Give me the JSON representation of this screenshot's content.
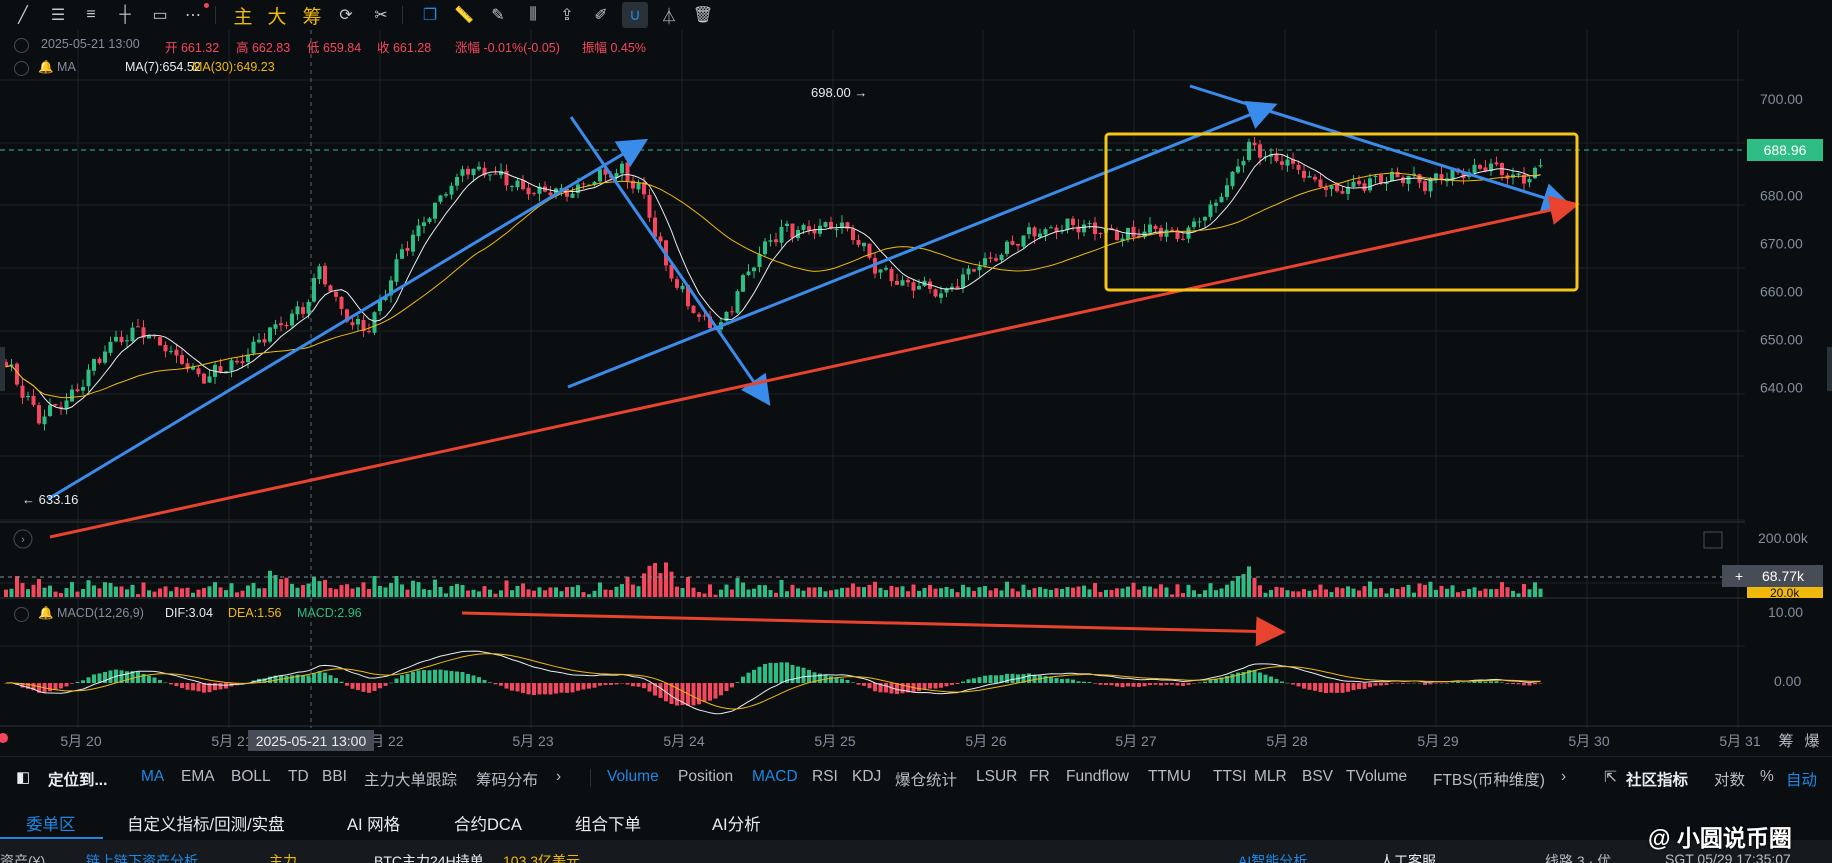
{
  "toolbar": {
    "icons": [
      "line-tool-icon",
      "parallel-lines-icon",
      "horizontal-lines-icon",
      "horizontal-ray-icon",
      "rectangle-icon",
      "more-tools-icon",
      "main-icon",
      "big-icon",
      "chips-icon",
      "sync-icon",
      "shapes-icon",
      "copy-icon",
      "ruler-icon",
      "brush-icon",
      "candles-icon",
      "upload-icon",
      "edit-icon",
      "magnet-icon",
      "filter-icon",
      "trash-icon"
    ],
    "main_label": "主",
    "big_label": "大",
    "chips_label": "筹"
  },
  "ohlc_bar": {
    "datetime": "2025-05-21 13:00",
    "open_label": "开",
    "open": "661.32",
    "high_label": "高",
    "high": "662.83",
    "low_label": "低",
    "low": "659.84",
    "close_label": "收",
    "close": "661.28",
    "change_label": "涨幅",
    "change": "-0.01%(-0.05)",
    "amplitude_label": "振幅",
    "amplitude": "0.45%"
  },
  "ma_legend": {
    "name": "MA",
    "ma7": "MA(7):654.52",
    "ma30": "MA(30):649.23"
  },
  "macd_legend": {
    "name": "MACD(12,26,9)",
    "dif": "DIF:3.04",
    "dea": "DEA:1.56",
    "macd": "MACD:2.96"
  },
  "markers": {
    "high": "698.00 →",
    "low": "← 633.16",
    "crosshair_time": "2025-05-21 13:00"
  },
  "price_tags": {
    "current": "688.96",
    "volume": "68.77k",
    "volume_low": "20.0k"
  },
  "colors": {
    "up": "#2ebd85",
    "down": "#f6465d",
    "ma7": "#eaecef",
    "ma30": "#f0b90b",
    "annot_blue": "#3b8beb",
    "annot_red": "#e8432e",
    "box": "#f5c518",
    "grid": "#1c2026",
    "axis_text": "#848e9c"
  },
  "chart_data": {
    "type": "candlestick",
    "ylim": [
      628,
      704
    ],
    "y_ticks": [
      640,
      650,
      660,
      670,
      680,
      690,
      700
    ],
    "y_tick_labels": [
      "640.00",
      "650.00",
      "660.00",
      "670.00",
      "680.00",
      "700.00"
    ],
    "x_tick_labels": [
      "5月 20",
      "5月 21",
      "5月 22",
      "5月 23",
      "5月 24",
      "5月 25",
      "5月 26",
      "5月 27",
      "5月 28",
      "5月 29",
      "5月 30",
      "5月 31"
    ],
    "close_anchors": [
      [
        0,
        645
      ],
      [
        6,
        633.5
      ],
      [
        12,
        638
      ],
      [
        18,
        648
      ],
      [
        24,
        652
      ],
      [
        30,
        647
      ],
      [
        36,
        642
      ],
      [
        42,
        645
      ],
      [
        48,
        652
      ],
      [
        54,
        656
      ],
      [
        57,
        665
      ],
      [
        60,
        658
      ],
      [
        63,
        653
      ],
      [
        66,
        652
      ],
      [
        72,
        668
      ],
      [
        78,
        678
      ],
      [
        84,
        686
      ],
      [
        90,
        684
      ],
      [
        96,
        680
      ],
      [
        102,
        681
      ],
      [
        108,
        684
      ],
      [
        112,
        685
      ],
      [
        116,
        680
      ],
      [
        120,
        665
      ],
      [
        126,
        654
      ],
      [
        130,
        653
      ],
      [
        134,
        662
      ],
      [
        138,
        670
      ],
      [
        142,
        673
      ],
      [
        146,
        672
      ],
      [
        150,
        674
      ],
      [
        154,
        672
      ],
      [
        158,
        665
      ],
      [
        162,
        662
      ],
      [
        166,
        661
      ],
      [
        170,
        659
      ],
      [
        174,
        663
      ],
      [
        178,
        666
      ],
      [
        182,
        669
      ],
      [
        186,
        672
      ],
      [
        190,
        673
      ],
      [
        194,
        674
      ],
      [
        198,
        673
      ],
      [
        202,
        671
      ],
      [
        206,
        672
      ],
      [
        210,
        673
      ],
      [
        214,
        672
      ],
      [
        218,
        676
      ],
      [
        222,
        682
      ],
      [
        226,
        690
      ],
      [
        230,
        688
      ],
      [
        234,
        686
      ],
      [
        238,
        683
      ],
      [
        242,
        681
      ],
      [
        246,
        682
      ],
      [
        250,
        684
      ],
      [
        254,
        684
      ],
      [
        258,
        682
      ],
      [
        262,
        684
      ],
      [
        266,
        685
      ],
      [
        270,
        686
      ],
      [
        274,
        683
      ],
      [
        278,
        684
      ],
      [
        280,
        687
      ]
    ],
    "ma7_label": "MA(7)",
    "ma30_label": "MA(30)",
    "volume_ticks": [
      "200.00k"
    ],
    "macd_ticks": [
      "10.00",
      "0.00"
    ]
  },
  "annotations": {
    "lines": "blue trend arrows and red support line",
    "box": "yellow consolidation rectangle"
  },
  "indicator_bar": {
    "locate": "定位到...",
    "main_items": [
      "MA",
      "EMA",
      "BOLL",
      "TD",
      "BBI",
      "主力大单跟踪",
      "筹码分布"
    ],
    "sub_items": [
      "Volume",
      "Position",
      "MACD",
      "RSI",
      "KDJ",
      "爆仓统计",
      "LSUR",
      "FR",
      "Fundflow",
      "TTMU",
      "TTSI",
      "MLR",
      "BSV",
      "TVolume",
      "FTBS(币种维度)"
    ],
    "community": "社区指标",
    "compare": "对数",
    "percent": "%",
    "auto": "自动"
  },
  "tabs": [
    "委单区",
    "自定义指标/回测/实盘",
    "AI 网格",
    "合约DCA",
    "组合下单",
    "AI分析"
  ],
  "status_bar": {
    "assets": "资产(¥)",
    "chain": "链上链下资产分析",
    "main_force": "主力",
    "btc": "BTC主力24H持单",
    "btc_value": "103.3亿美元",
    "ai": "AI智能分析",
    "service": "人工客服",
    "route": "线路 3 · 优",
    "time": "SGT 05/29 17:35:07"
  },
  "watermark": "@ 小圆说币圈",
  "axis_right": {
    "zoom": "筹",
    "explode": "爆"
  }
}
